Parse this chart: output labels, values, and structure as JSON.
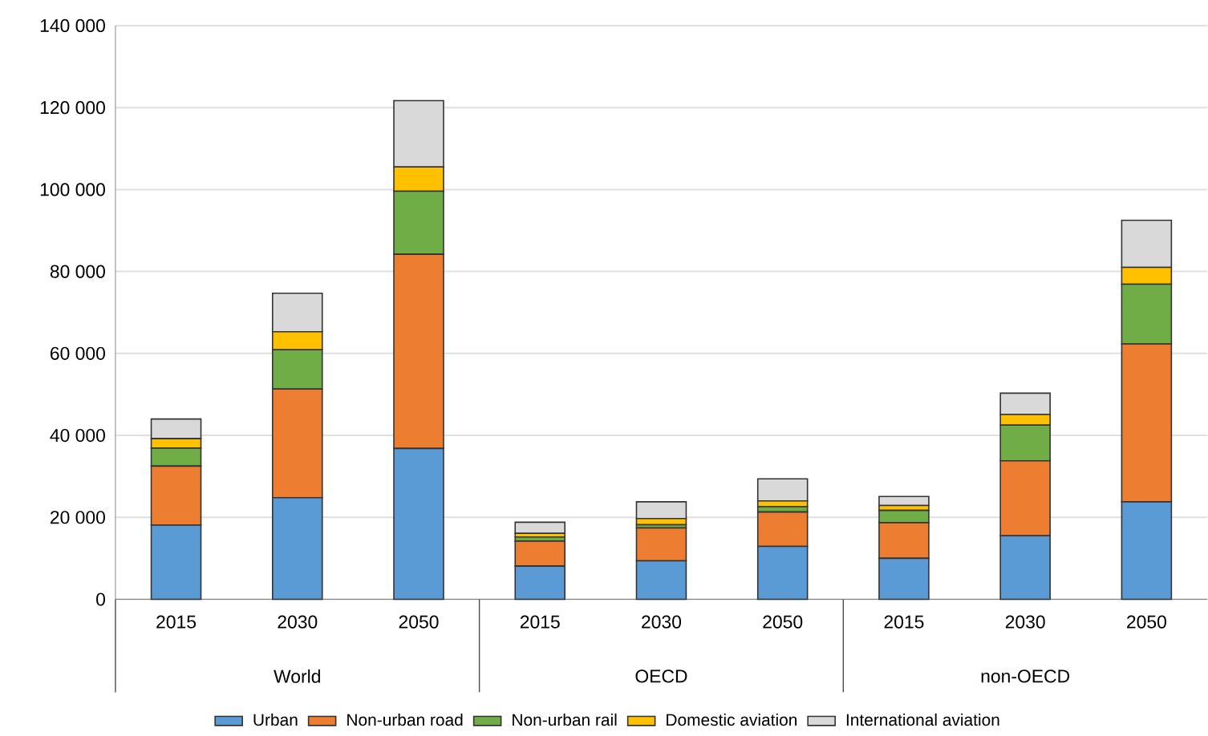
{
  "chart_data": {
    "type": "bar",
    "stacked": true,
    "categories": [
      "2015",
      "2030",
      "2050",
      "2015",
      "2030",
      "2050",
      "2015",
      "2030",
      "2050"
    ],
    "annotations": [
      "World",
      "OECD",
      "non-OECD"
    ],
    "series": [
      {
        "name": "Urban",
        "color": "#5b9bd5",
        "values": [
          18100,
          24800,
          36800,
          8100,
          9400,
          12900,
          10000,
          15500,
          23800
        ]
      },
      {
        "name": "Non-urban road",
        "color": "#ed7d31",
        "values": [
          14400,
          26500,
          47400,
          6100,
          8000,
          8400,
          8700,
          18300,
          38500
        ]
      },
      {
        "name": "Non-urban rail",
        "color": "#70ad47",
        "values": [
          4400,
          9600,
          15400,
          1000,
          800,
          1300,
          3000,
          8700,
          14600
        ]
      },
      {
        "name": "Domestic aviation",
        "color": "#ffc000",
        "values": [
          2300,
          4400,
          5900,
          900,
          1500,
          1400,
          1200,
          2600,
          4100
        ]
      },
      {
        "name": "International aviation",
        "color": "#d9d9d9",
        "values": [
          4800,
          9400,
          16200,
          2700,
          4100,
          5400,
          2200,
          5200,
          11500
        ]
      }
    ],
    "ylim": [
      0,
      140000
    ],
    "yticks": [
      0,
      {
        "value": 20000,
        "label": "20 000"
      },
      {
        "value": 40000,
        "label": "40 000"
      },
      {
        "value": 60000,
        "label": "60 000"
      },
      {
        "value": 80000,
        "label": "80 000"
      },
      {
        "value": 100000,
        "label": "100 000"
      },
      {
        "value": 120000,
        "label": "120 000"
      },
      {
        "value": 140000,
        "label": "140 000"
      }
    ],
    "grid": "y",
    "legend": "bottom"
  }
}
